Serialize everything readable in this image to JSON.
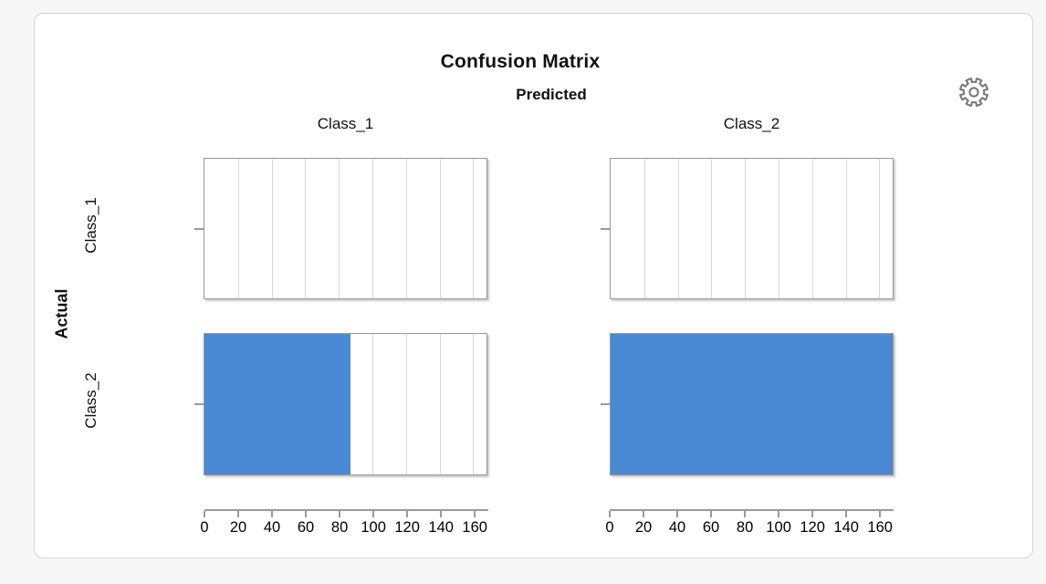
{
  "card": {
    "background": "#ffffff",
    "page_background": "#f7f7f7",
    "border_color": "#d4d4d4"
  },
  "header": {
    "settings_icon": "gear-icon",
    "settings_color": "#757575"
  },
  "chart_data": {
    "type": "bar",
    "orientation": "horizontal",
    "title": "Confusion Matrix",
    "facet_col_label": "Predicted",
    "facet_row_label": "Actual",
    "col_categories": [
      "Class_1",
      "Class_2"
    ],
    "row_categories": [
      "Class_1",
      "Class_2"
    ],
    "values": [
      [
        0,
        0
      ],
      [
        87,
        168
      ]
    ],
    "value_note": "rows = Actual class, columns = Predicted class; counts estimated from bar lengths",
    "x_ticks": [
      0,
      20,
      40,
      60,
      80,
      100,
      120,
      140,
      160
    ],
    "xlim": [
      0,
      168
    ],
    "grid": true,
    "legend": "none",
    "bar_color": "#4A89D4",
    "grid_color": "#d8d8d8",
    "panel_border_color": "#979797",
    "axis_color": "#9a9a9a"
  }
}
